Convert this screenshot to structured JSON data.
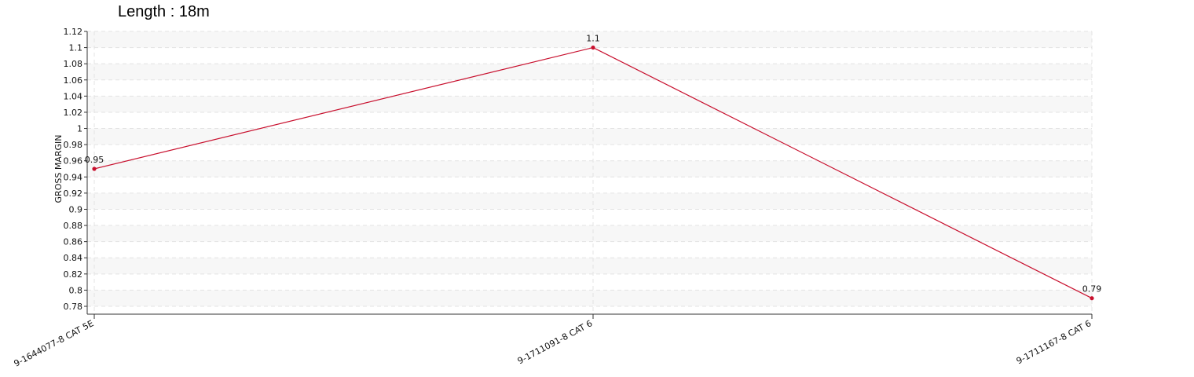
{
  "chart_data": {
    "type": "line",
    "title": "Length : 18m",
    "xlabel": "",
    "ylabel": "GROSS MARGIN",
    "categories": [
      "9-1644077-8 CAT 5E",
      "9-1711091-8 CAT 6",
      "9-1711167-8 CAT 6"
    ],
    "series": [
      {
        "values": [
          0.95,
          1.1,
          0.79
        ],
        "color": "#c8102e"
      }
    ],
    "data_labels": [
      "0.95",
      "1.1",
      "0.79"
    ],
    "ylim": [
      0.78,
      1.12
    ],
    "yticks": [
      0.78,
      0.8,
      0.82,
      0.84,
      0.86,
      0.88,
      0.9,
      0.92,
      0.94,
      0.96,
      0.98,
      1,
      1.02,
      1.04,
      1.06,
      1.08,
      1.1,
      1.12
    ],
    "ytick_labels": [
      "0.78",
      "0.8",
      "0.82",
      "0.84",
      "0.86",
      "0.88",
      "0.9",
      "0.92",
      "0.94",
      "0.96",
      "0.98",
      "1",
      "1.02",
      "1.04",
      "1.06",
      "1.08",
      "1.1",
      "1.12"
    ],
    "grid": true,
    "band_color": "#f7f7f7",
    "grid_color": "#e3e3e3",
    "axis_color": "#333333"
  }
}
